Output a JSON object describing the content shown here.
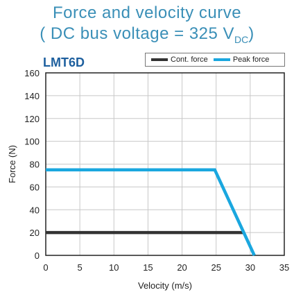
{
  "header": {
    "title_line1": "Force and velocity curve",
    "title_line2_prefix": "( DC bus voltage = 325 V",
    "title_line2_sub": "DC",
    "title_line2_suffix": ")"
  },
  "model_label": "LMT6D",
  "colors": {
    "title": "#3a8fb7",
    "model": "#1d5f9e",
    "cont_force": "#333333",
    "peak_force": "#1aa7df",
    "grid": "#c8c8c8"
  },
  "chart_data": {
    "type": "line",
    "xlabel": "Velocity (m/s)",
    "ylabel": "Force (N)",
    "xlim": [
      0,
      35
    ],
    "ylim": [
      0,
      160
    ],
    "xticks": [
      0,
      5,
      10,
      15,
      20,
      25,
      30,
      35
    ],
    "yticks": [
      0,
      20,
      40,
      60,
      80,
      100,
      120,
      140,
      160
    ],
    "grid": true,
    "legend_position": "top-right",
    "series": [
      {
        "name": "Cont. force",
        "color": "#333333",
        "points": [
          [
            0,
            20
          ],
          [
            29,
            20
          ]
        ]
      },
      {
        "name": "Peak force",
        "color": "#1aa7df",
        "points": [
          [
            0,
            75
          ],
          [
            24.8,
            75
          ],
          [
            30.6,
            0
          ]
        ]
      }
    ]
  }
}
